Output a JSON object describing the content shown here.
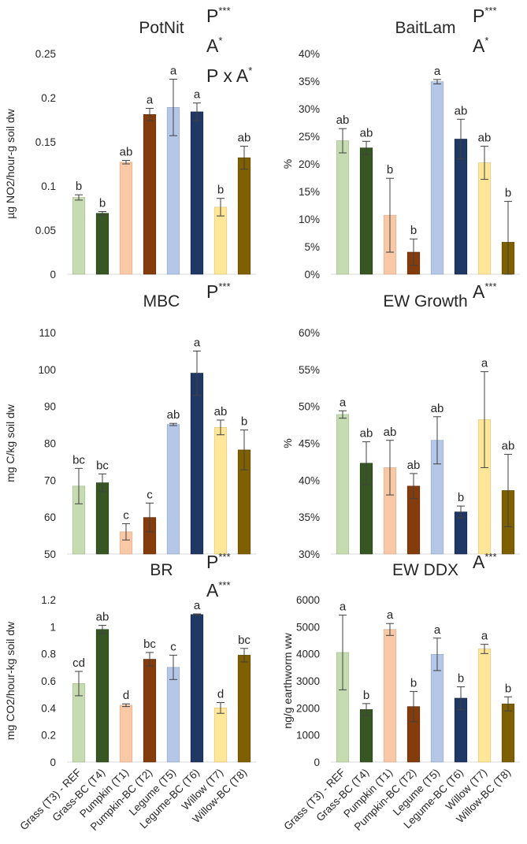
{
  "colors": [
    "#c6dbb1",
    "#375623",
    "#f9c8a6",
    "#843c0c",
    "#b4c7e7",
    "#1f3864",
    "#ffe699",
    "#7f6000"
  ],
  "categories": [
    "Grass (T3) - REF",
    "Grass-BC (T4)",
    "Pumpkin (T1)",
    "Pumpkin-BC (T2)",
    "Legume (T5)",
    "Legume-BC (T6)",
    "Willow (T7)",
    "Willow-BC (T8)"
  ],
  "chart_data": [
    {
      "type": "bar",
      "title": "PotNit",
      "ylabel": "µg NO2/hour-g soil dw",
      "ylim": [
        0,
        0.25
      ],
      "yticks": [
        "0",
        "0.05",
        "0.1",
        "0.15",
        "0.2",
        "0.25"
      ],
      "ytick_values": [
        0,
        0.05,
        0.1,
        0.15,
        0.2,
        0.25
      ],
      "categories_ref": "categories",
      "values": [
        0.087,
        0.069,
        0.127,
        0.181,
        0.189,
        0.184,
        0.076,
        0.132
      ],
      "error": [
        0.003,
        0.002,
        0.002,
        0.007,
        0.032,
        0.01,
        0.01,
        0.013
      ],
      "letters": [
        "b",
        "b",
        "ab",
        "a",
        "a",
        "a",
        "b",
        "ab"
      ],
      "stats": [
        {
          "label": "P",
          "sup": "***"
        },
        {
          "label": "A",
          "sup": "*"
        },
        {
          "label": "P x A",
          "sup": "*"
        }
      ]
    },
    {
      "type": "bar",
      "title": "BaitLam",
      "ylabel": "%",
      "ylim": [
        0,
        0.4
      ],
      "yticks": [
        "0%",
        "5%",
        "10%",
        "15%",
        "20%",
        "25%",
        "30%",
        "35%",
        "40%"
      ],
      "ytick_values": [
        0,
        0.05,
        0.1,
        0.15,
        0.2,
        0.25,
        0.3,
        0.35,
        0.4
      ],
      "categories_ref": "categories",
      "values": [
        0.242,
        0.229,
        0.107,
        0.04,
        0.349,
        0.245,
        0.202,
        0.058
      ],
      "error": [
        0.022,
        0.012,
        0.067,
        0.024,
        0.004,
        0.036,
        0.03,
        0.074
      ],
      "letters": [
        "ab",
        "ab",
        "b",
        "b",
        "a",
        "ab",
        "ab",
        "b"
      ],
      "stats": [
        {
          "label": "P",
          "sup": "***"
        },
        {
          "label": "A",
          "sup": "*"
        }
      ]
    },
    {
      "type": "bar",
      "title": "MBC",
      "ylabel": "mg C/kg soil dw",
      "ylim": [
        50,
        110
      ],
      "yticks": [
        "50",
        "60",
        "70",
        "80",
        "90",
        "100",
        "110"
      ],
      "ytick_values": [
        50,
        60,
        70,
        80,
        90,
        100,
        110
      ],
      "categories_ref": "categories",
      "values": [
        68.4,
        69.3,
        56.0,
        59.9,
        85.1,
        99.0,
        84.3,
        78.2
      ],
      "error": [
        4.8,
        2.4,
        2.2,
        3.9,
        0.3,
        6.0,
        2.0,
        5.4
      ],
      "letters": [
        "bc",
        "bc",
        "c",
        "c",
        "ab",
        "a",
        "ab",
        "b"
      ],
      "stats": [
        {
          "label": "P",
          "sup": "***"
        }
      ]
    },
    {
      "type": "bar",
      "title": "EW Growth",
      "ylabel": "%",
      "ylim": [
        0.3,
        0.6
      ],
      "yticks": [
        "30%",
        "35%",
        "40%",
        "45%",
        "50%",
        "55%",
        "60%"
      ],
      "ytick_values": [
        0.3,
        0.35,
        0.4,
        0.45,
        0.5,
        0.55,
        0.6
      ],
      "categories_ref": "categories",
      "values": [
        0.489,
        0.423,
        0.417,
        0.392,
        0.454,
        0.357,
        0.482,
        0.386
      ],
      "error": [
        0.005,
        0.029,
        0.037,
        0.017,
        0.032,
        0.008,
        0.065,
        0.049
      ],
      "letters": [
        "a",
        "ab",
        "ab",
        "ab",
        "ab",
        "b",
        "a",
        "ab"
      ],
      "stats": [
        {
          "label": "A",
          "sup": "***"
        }
      ]
    },
    {
      "type": "bar",
      "title": "BR",
      "ylabel": "mg CO2/hour-kg soil dw",
      "ylim": [
        0,
        1.2
      ],
      "yticks": [
        "0",
        "0.2",
        "0.4",
        "0.6",
        "0.8",
        "1",
        "1.2"
      ],
      "ytick_values": [
        0,
        0.2,
        0.4,
        0.6,
        0.8,
        1.0,
        1.2
      ],
      "categories_ref": "categories",
      "values": [
        0.58,
        0.98,
        0.42,
        0.76,
        0.7,
        1.09,
        0.4,
        0.79
      ],
      "error": [
        0.09,
        0.03,
        0.01,
        0.05,
        0.09,
        0.005,
        0.04,
        0.05
      ],
      "letters": [
        "cd",
        "ab",
        "d",
        "bc",
        "c",
        "a",
        "d",
        "bc"
      ],
      "stats": [
        {
          "label": "P",
          "sup": "***"
        },
        {
          "label": "A",
          "sup": "***"
        }
      ]
    },
    {
      "type": "bar",
      "title": "EW DDX",
      "ylabel": "ng/g earthworm ww",
      "ylim": [
        0,
        6000
      ],
      "yticks": [
        "0",
        "1000",
        "2000",
        "3000",
        "4000",
        "5000",
        "6000"
      ],
      "ytick_values": [
        0,
        1000,
        2000,
        3000,
        4000,
        5000,
        6000
      ],
      "categories_ref": "categories",
      "values": [
        4050,
        1940,
        4900,
        2050,
        3980,
        2360,
        4180,
        2150
      ],
      "error": [
        1380,
        220,
        220,
        560,
        600,
        420,
        170,
        260
      ],
      "letters": [
        "a",
        "b",
        "a",
        "b",
        "a",
        "b",
        "a",
        "b"
      ],
      "stats": [
        {
          "label": "A",
          "sup": "***"
        }
      ]
    }
  ]
}
